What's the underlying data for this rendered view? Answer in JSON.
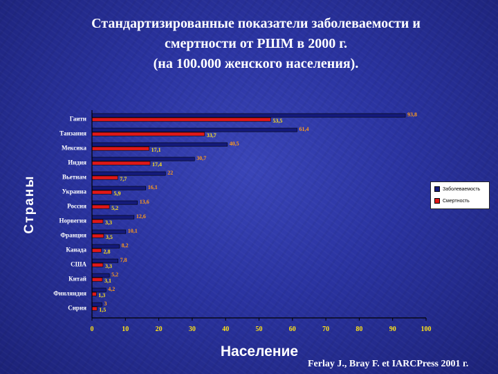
{
  "title_lines": [
    "Стандартизированные показатели заболеваемости и",
    "смертности от РШМ в 2000 г.",
    "(на 100.000 женского населения)."
  ],
  "source": "Ferlay J., Bray F. et IARCPress 2001 г.",
  "chart_data": {
    "type": "bar",
    "orientation": "horizontal",
    "categories": [
      "Гаити",
      "Танзания",
      "Мексика",
      "Индия",
      "Вьетнам",
      "Украина",
      "Россия",
      "Норвегия",
      "Франция",
      "Канада",
      "США",
      "Китай",
      "Финляндия",
      "Сирия"
    ],
    "series": [
      {
        "name": "Заболеваемость",
        "color": "#141a7a",
        "values": [
          93.8,
          61.4,
          40.5,
          30.7,
          22,
          16.1,
          13.6,
          12.6,
          10.1,
          8.2,
          7.8,
          5.2,
          4.2,
          3
        ],
        "labels": [
          "93,8",
          "61,4",
          "40,5",
          "30,7",
          "22",
          "16,1",
          "13,6",
          "12,6",
          "10,1",
          "8,2",
          "7,8",
          "5,2",
          "4,2",
          "3"
        ]
      },
      {
        "name": "Смертность",
        "color": "#e01818",
        "values": [
          53.5,
          33.7,
          17.1,
          17.4,
          7.7,
          5.9,
          5.2,
          3.3,
          3.5,
          2.8,
          3.3,
          3.1,
          1.3,
          1.5
        ],
        "labels": [
          "53,5",
          "33,7",
          "17,1",
          "17,4",
          "7,7",
          "5,9",
          "5,2",
          "3,3",
          "3,5",
          "2,8",
          "3,3",
          "3,1",
          "1,3",
          "1,5"
        ]
      }
    ],
    "xlim": [
      0,
      100
    ],
    "xticks": [
      "0",
      "10",
      "20",
      "30",
      "40",
      "50",
      "60",
      "70",
      "80",
      "90",
      "100"
    ],
    "xlabel": "Население",
    "ylabel": "Страны",
    "legend_position": "right",
    "grid": false
  }
}
